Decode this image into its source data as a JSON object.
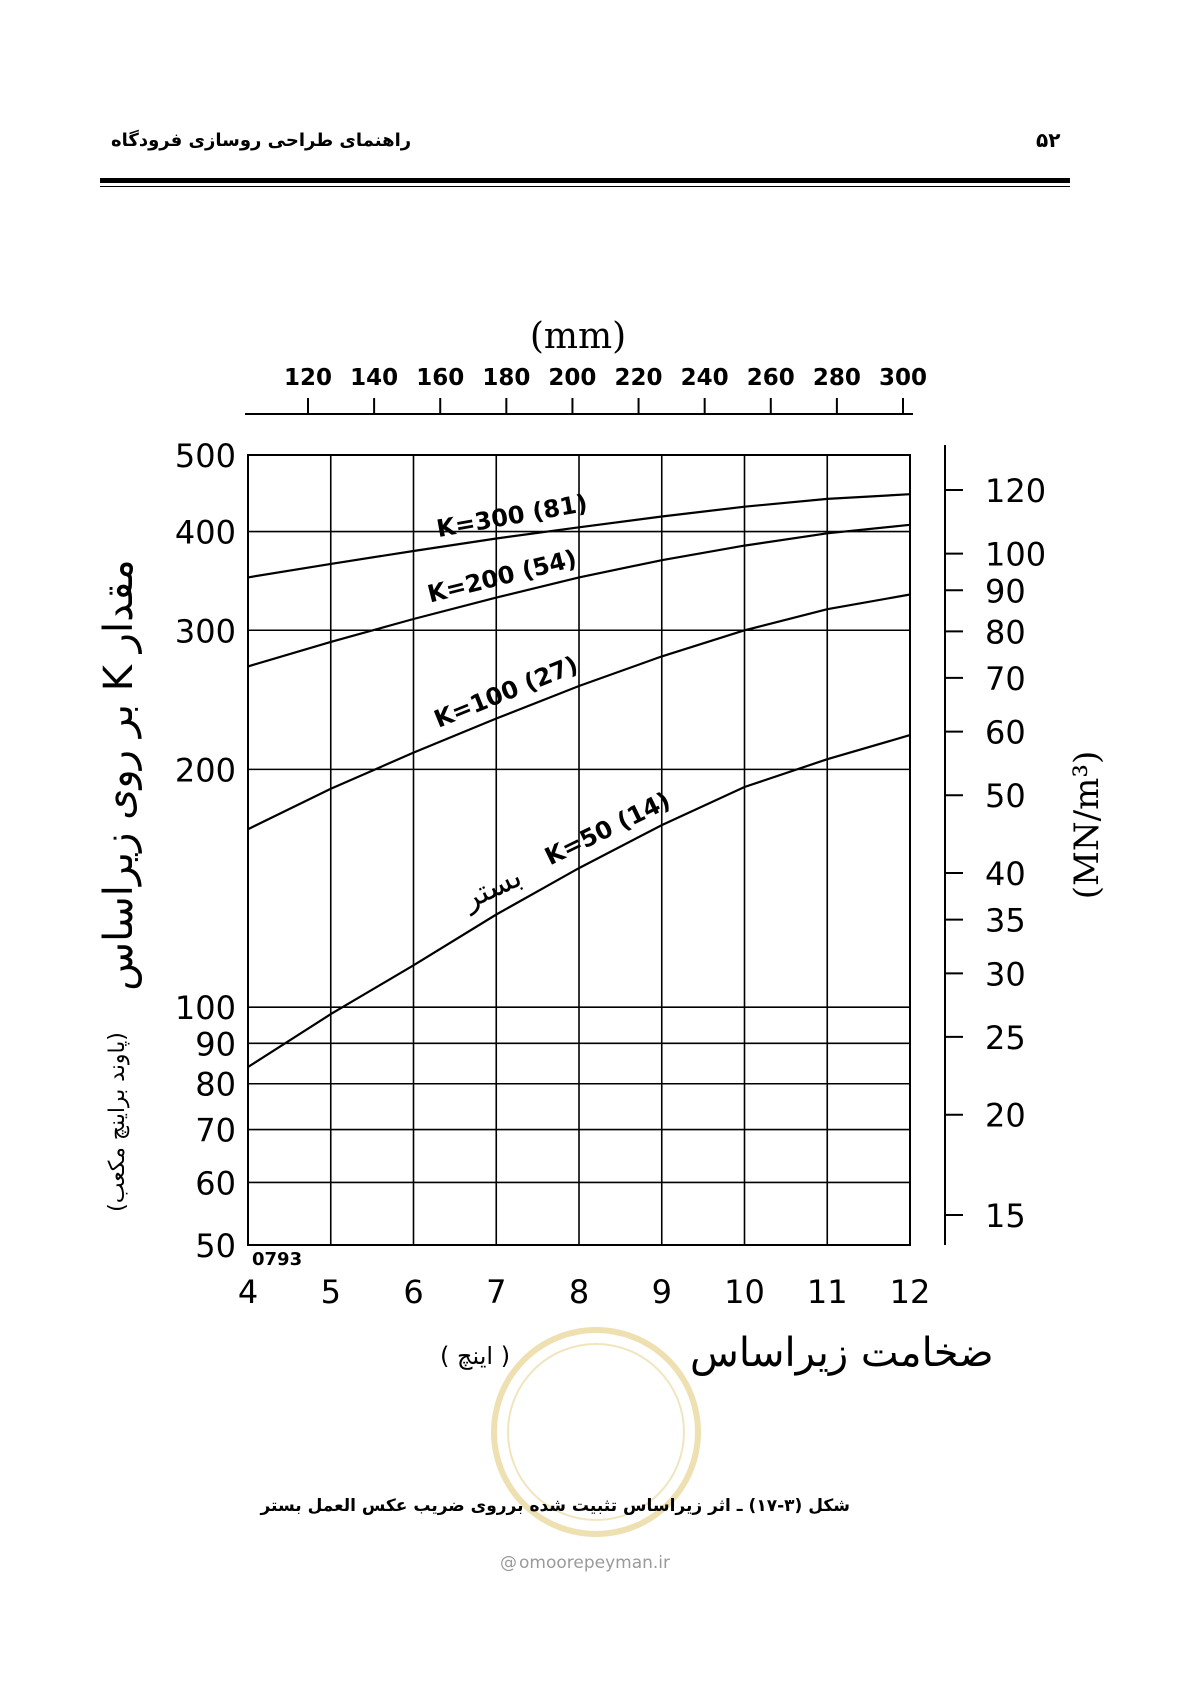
{
  "header": {
    "page_number": "۵۲",
    "running_title": "راهنمای طراحی روسازی فرودگاه"
  },
  "caption": "شکل (۳-۱۷) ـ اثر زیراساس تثبیت شده برروی ضریب عکس العمل بستر",
  "watermark": {
    "website": "omoorepeyman.ir",
    "icon": "at-icon",
    "seal": "circular-seal-logo"
  },
  "chart_data": {
    "type": "line",
    "x": [
      4,
      5,
      6,
      7,
      8,
      9,
      10,
      11,
      12
    ],
    "xlim": [
      4,
      12
    ],
    "x_ticks": [
      "4",
      "5",
      "6",
      "7",
      "8",
      "9",
      "10",
      "11",
      "12"
    ],
    "xlabel": "ضخامت زیراساس",
    "xlabel_unit": "( اینچ )",
    "top_axis_label": "(mm)",
    "top_ticks": [
      "120",
      "140",
      "160",
      "180",
      "200",
      "220",
      "240",
      "260",
      "280",
      "300"
    ],
    "top_tick_values": [
      120,
      140,
      160,
      180,
      200,
      220,
      240,
      260,
      280,
      300
    ],
    "ylim": [
      50,
      500
    ],
    "y_scale": "log",
    "y_ticks": [
      "50",
      "60",
      "70",
      "80",
      "90",
      "100",
      "200",
      "300",
      "400",
      "500"
    ],
    "y_tick_values": [
      50,
      60,
      70,
      80,
      90,
      100,
      200,
      300,
      400,
      500
    ],
    "ylabel_main": "مقدار K بر روی زیراساس",
    "ylabel_unit": "(پاوند براینچ مکعب)",
    "right_ticks": [
      "15",
      "20",
      "25",
      "30",
      "35",
      "40",
      "50",
      "60",
      "70",
      "80",
      "90",
      "100",
      "120"
    ],
    "right_tick_values": [
      15,
      20,
      25,
      30,
      35,
      40,
      50,
      60,
      70,
      80,
      90,
      100,
      120
    ],
    "right_label": "(MN/m³)",
    "corner_code": "0793",
    "annotation": "بستر",
    "grid": true,
    "series": [
      {
        "name": "K=300  (81)",
        "values": [
          350,
          364,
          378,
          392,
          405,
          418,
          430,
          440,
          446
        ]
      },
      {
        "name": "K=200  (54)",
        "values": [
          270,
          290,
          310,
          330,
          350,
          368,
          384,
          398,
          408
        ]
      },
      {
        "name": "K=100  (27)",
        "values": [
          168,
          189,
          210,
          232,
          255,
          278,
          300,
          319,
          333
        ]
      },
      {
        "name": "K=50  (14)",
        "values": [
          84,
          98,
          113,
          131,
          150,
          170,
          190,
          206,
          221
        ]
      }
    ]
  }
}
